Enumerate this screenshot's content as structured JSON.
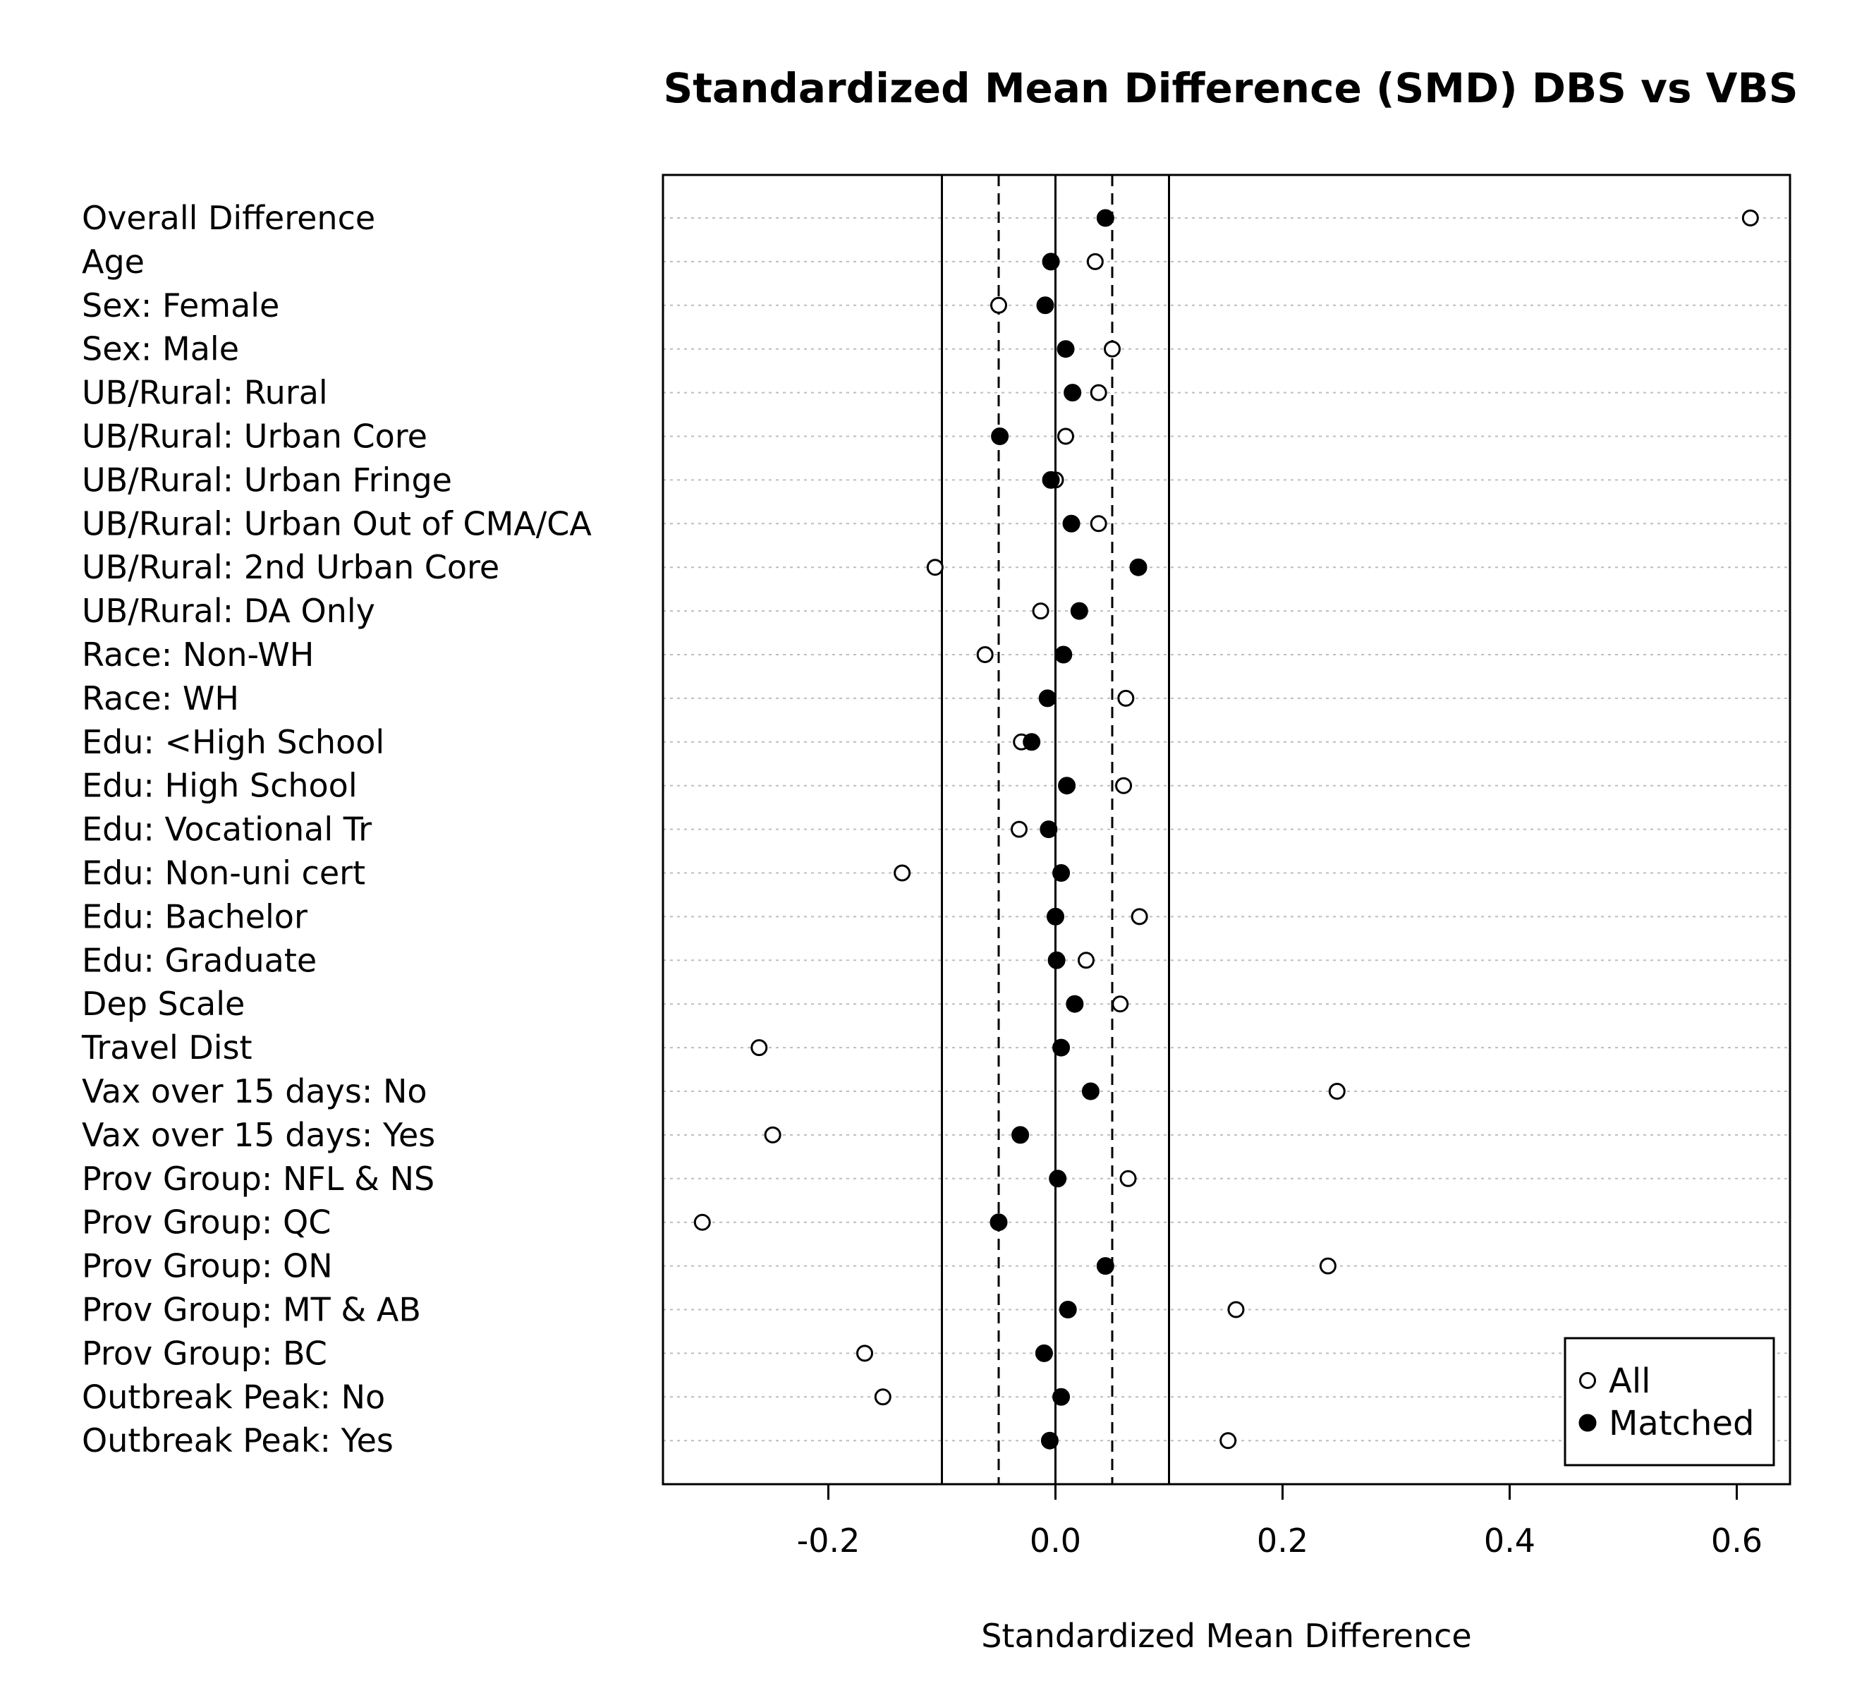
{
  "chart_data": {
    "type": "scatter",
    "title": "Standardized Mean Difference (SMD) DBS vs VBS",
    "xlabel": "Standardized Mean Difference",
    "ylabel": "",
    "xlim": [
      -0.35,
      0.65
    ],
    "xticks": [
      -0.2,
      0.0,
      0.2,
      0.4,
      0.6
    ],
    "xtick_labels": [
      "-0.2",
      "0.0",
      "0.2",
      "0.4",
      "0.6"
    ],
    "reference_lines": {
      "solid": [
        -0.1,
        0.0,
        0.1
      ],
      "dashed": [
        -0.05,
        0.05
      ]
    },
    "grid": "horizontal dotted",
    "legend_position": "bottom-right",
    "categories": [
      "Overall Difference",
      "Age",
      "Sex: Female",
      "Sex: Male",
      "UB/Rural: Rural",
      "UB/Rural: Urban Core",
      "UB/Rural: Urban Fringe",
      "UB/Rural: Urban Out of CMA/CA",
      "UB/Rural: 2nd Urban Core",
      "UB/Rural: DA Only",
      "Race: Non-WH",
      "Race: WH",
      "Edu: <High School",
      "Edu: High School",
      "Edu: Vocational Tr",
      "Edu: Non-uni cert",
      "Edu: Bachelor",
      "Edu: Graduate",
      "Dep Scale",
      "Travel Dist",
      "Vax over 15 days: No",
      "Vax over 15 days: Yes",
      "Prov Group: NFL & NS",
      "Prov Group: QC",
      "Prov Group: ON",
      "Prov Group: MT & AB",
      "Prov Group: BC",
      "Outbreak Peak: No",
      "Outbreak Peak: Yes"
    ],
    "series": [
      {
        "name": "All",
        "marker": "open",
        "values": [
          0.612,
          0.035,
          -0.05,
          0.05,
          0.038,
          0.009,
          0.0,
          0.038,
          -0.106,
          -0.013,
          -0.062,
          0.062,
          -0.03,
          0.06,
          -0.032,
          -0.135,
          0.074,
          0.027,
          0.057,
          -0.261,
          0.248,
          -0.249,
          0.064,
          -0.311,
          0.24,
          0.159,
          -0.168,
          -0.152,
          0.152
        ]
      },
      {
        "name": "Matched",
        "marker": "filled",
        "values": [
          0.044,
          -0.004,
          -0.009,
          0.009,
          0.015,
          -0.049,
          -0.004,
          0.014,
          0.073,
          0.021,
          0.007,
          -0.007,
          -0.021,
          0.01,
          -0.006,
          0.005,
          0.0,
          0.001,
          0.017,
          0.005,
          0.031,
          -0.031,
          0.002,
          -0.05,
          0.044,
          0.011,
          -0.01,
          0.005,
          -0.005
        ]
      }
    ]
  }
}
